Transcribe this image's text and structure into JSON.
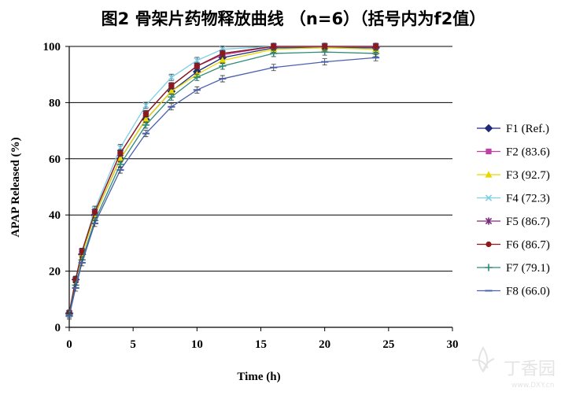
{
  "chart_data": {
    "type": "line",
    "title": "图2 骨架片药物释放曲线 （n=6）（括号内为f2值）",
    "xlabel": "Time (h)",
    "ylabel": "APAP Released (%)",
    "xlim": [
      0,
      30
    ],
    "ylim": [
      0,
      100
    ],
    "xticks": [
      "0",
      "5",
      "10",
      "15",
      "20",
      "25",
      "30"
    ],
    "yticks": [
      "0",
      "20",
      "40",
      "60",
      "80",
      "100"
    ],
    "grid": "horizontal",
    "legend_position": "right",
    "x": [
      0,
      0.5,
      1,
      2,
      4,
      6,
      8,
      10,
      12,
      16,
      20,
      24
    ],
    "series": [
      {
        "name": "F1 (Ref.)",
        "color": "#1f2a7a",
        "marker": "diamond",
        "values": [
          5,
          17,
          26,
          40,
          60,
          74,
          84,
          91,
          96,
          99.5,
          99.5,
          99.5
        ]
      },
      {
        "name": "F2 (83.6)",
        "color": "#c040a8",
        "marker": "square",
        "values": [
          5,
          17,
          27,
          41,
          62,
          76,
          86,
          93,
          97,
          100,
          100,
          100
        ]
      },
      {
        "name": "F3 (92.7)",
        "color": "#e6d800",
        "marker": "triangle",
        "values": [
          5,
          17,
          26,
          40,
          60,
          74,
          84,
          90,
          95,
          99,
          99.5,
          99
        ]
      },
      {
        "name": "F4 (72.3)",
        "color": "#7ecfe6",
        "marker": "x",
        "values": [
          5,
          17,
          27,
          42,
          64,
          79,
          89,
          95,
          99,
          100,
          100,
          100
        ]
      },
      {
        "name": "F5 (86.7)",
        "color": "#7a2a7a",
        "marker": "star",
        "values": [
          5,
          17,
          27,
          41,
          62,
          76,
          86,
          93,
          97.5,
          100,
          100,
          100
        ]
      },
      {
        "name": "F6 (86.7)",
        "color": "#8b1a1a",
        "marker": "circle",
        "values": [
          5,
          17,
          27,
          41,
          62,
          76,
          86,
          93,
          97.5,
          100,
          100,
          100
        ]
      },
      {
        "name": "F7 (79.1)",
        "color": "#2e8b7a",
        "marker": "plus",
        "values": [
          4.5,
          15,
          24,
          38,
          58,
          72,
          82,
          89,
          93,
          97.5,
          98,
          97.5
        ]
      },
      {
        "name": "F8 (66.0)",
        "color": "#4a60b0",
        "marker": "dash",
        "values": [
          4,
          14,
          23,
          37,
          56,
          69,
          78.5,
          84.5,
          88.5,
          92.5,
          94.5,
          96
        ]
      }
    ]
  },
  "watermark": {
    "brand": "丁香园",
    "url": "www.DXY.cn"
  }
}
